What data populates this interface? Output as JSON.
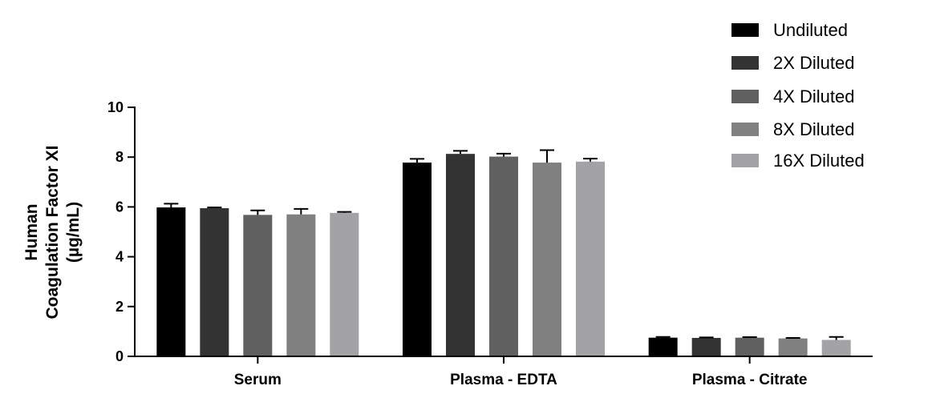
{
  "chart_data": {
    "type": "bar",
    "title": "",
    "xlabel": "",
    "ylabel_lines": [
      "Human",
      "Coagulation Factor XI",
      "(µg/mL)"
    ],
    "ylim": [
      0,
      10
    ],
    "yticks": [
      0,
      2,
      4,
      6,
      8,
      10
    ],
    "categories": [
      "Serum",
      "Plasma - EDTA",
      "Plasma - Citrate"
    ],
    "legend_position": "top-right",
    "grid": false,
    "series": [
      {
        "name": "Undiluted",
        "color": "#000000",
        "values": [
          5.98,
          7.78,
          0.75
        ],
        "errors": [
          0.15,
          0.15,
          0.03
        ]
      },
      {
        "name": "2X Diluted",
        "color": "#333333",
        "values": [
          5.95,
          8.13,
          0.74
        ],
        "errors": [
          0.03,
          0.12,
          0.02
        ]
      },
      {
        "name": "4X Diluted",
        "color": "#606060",
        "values": [
          5.68,
          8.02,
          0.75
        ],
        "errors": [
          0.18,
          0.12,
          0.02
        ]
      },
      {
        "name": "8X Diluted",
        "color": "#808080",
        "values": [
          5.7,
          7.78,
          0.72
        ],
        "errors": [
          0.22,
          0.5,
          0.02
        ]
      },
      {
        "name": "16X Diluted",
        "color": "#a3a3a6",
        "values": [
          5.76,
          7.82,
          0.66
        ],
        "errors": [
          0.04,
          0.12,
          0.12
        ]
      }
    ]
  }
}
